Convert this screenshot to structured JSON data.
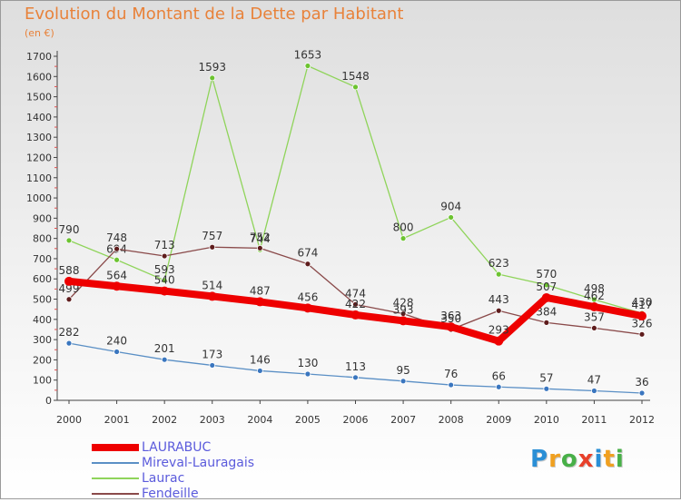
{
  "chart_data": {
    "type": "line",
    "title": "Evolution du Montant de la Dette par Habitant",
    "subtitle": "(en €)",
    "categories": [
      "2000",
      "2001",
      "2002",
      "2003",
      "2004",
      "2005",
      "2006",
      "2007",
      "2008",
      "2009",
      "2010",
      "2011",
      "2012"
    ],
    "ylim": [
      0,
      1700
    ],
    "yticks": [
      0,
      100,
      200,
      300,
      400,
      500,
      600,
      700,
      800,
      900,
      1000,
      1100,
      1200,
      1300,
      1400,
      1500,
      1600,
      1700
    ],
    "grid": false,
    "legend_position": "bottom-left",
    "series": [
      {
        "name": "Laurac",
        "color": "#8fd45a",
        "point_color": "#6cc330",
        "values": [
          790,
          694,
          593,
          1593,
          744,
          1653,
          1548,
          800,
          904,
          623,
          570,
          498,
          430
        ],
        "labels": [
          "790",
          "694",
          "593",
          "1593",
          "744",
          "1653",
          "1548",
          "800",
          "904",
          "623",
          "570",
          "498",
          "430"
        ]
      },
      {
        "name": "Fendeille",
        "color": "#8a4a4a",
        "point_color": "#5e1c1c",
        "values": [
          499,
          748,
          713,
          757,
          752,
          674,
          474,
          428,
          350,
          443,
          384,
          357,
          326
        ],
        "labels": [
          "499",
          "748",
          "713",
          "757",
          "752",
          "674",
          "474",
          "428",
          "350",
          "443",
          "384",
          "357",
          "326"
        ]
      },
      {
        "name": "Mireval-Lauragais",
        "color": "#5a8fc5",
        "point_color": "#3a76bf",
        "values": [
          282,
          240,
          201,
          173,
          146,
          130,
          113,
          95,
          76,
          66,
          57,
          47,
          36
        ],
        "labels": [
          "282",
          "240",
          "201",
          "173",
          "146",
          "130",
          "113",
          "95",
          "76",
          "66",
          "57",
          "47",
          "36"
        ]
      },
      {
        "name": "LAURABUC",
        "color": "#ee0000",
        "point_color": "#ee0000",
        "values": [
          588,
          564,
          540,
          514,
          487,
          456,
          422,
          393,
          363,
          293,
          507,
          462,
          417
        ],
        "labels": [
          "588",
          "564",
          "540",
          "514",
          "487",
          "456",
          "422",
          "393",
          "363",
          "293",
          "507",
          "462",
          "417"
        ]
      }
    ]
  },
  "legend": [
    {
      "name": "LAURABUC",
      "color": "#ee0000"
    },
    {
      "name": "Mireval-Lauragais",
      "color": "#5a8fc5"
    },
    {
      "name": "Laurac",
      "color": "#8fd45a"
    },
    {
      "name": "Fendeille",
      "color": "#8a4a4a"
    }
  ],
  "brand": {
    "letters": [
      "P",
      "r",
      "o",
      "x",
      "i",
      "t",
      "i"
    ],
    "colors": [
      "#2a8fd6",
      "#f0a020",
      "#48b048",
      "#e8402a",
      "#2a8fd6",
      "#f0a020",
      "#48b048"
    ]
  }
}
